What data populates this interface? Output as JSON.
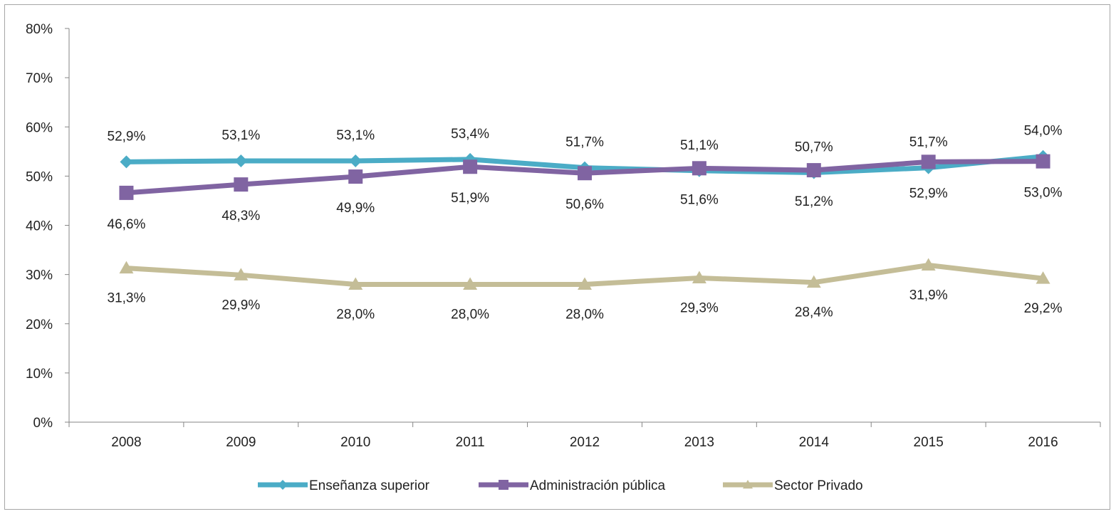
{
  "chart_data": {
    "type": "line",
    "categories": [
      "2008",
      "2009",
      "2010",
      "2011",
      "2012",
      "2013",
      "2014",
      "2015",
      "2016"
    ],
    "ylim": [
      0,
      80
    ],
    "yticks": [
      0,
      10,
      20,
      30,
      40,
      50,
      60,
      70,
      80
    ],
    "ytick_labels": [
      "0%",
      "10%",
      "20%",
      "30%",
      "40%",
      "50%",
      "60%",
      "70%",
      "80%"
    ],
    "grid": false,
    "legend_position": "bottom",
    "series": [
      {
        "name": "Enseñanza superior",
        "color": "#4bacc6",
        "marker": "diamond",
        "values": [
          52.9,
          53.1,
          53.1,
          53.4,
          51.7,
          51.1,
          50.7,
          51.7,
          54.0
        ],
        "labels": [
          "52,9%",
          "53,1%",
          "53,1%",
          "53,4%",
          "51,7%",
          "51,1%",
          "50,7%",
          "51,7%",
          "54,0%"
        ]
      },
      {
        "name": "Administración pública",
        "color": "#8064a2",
        "marker": "square",
        "values": [
          46.6,
          48.3,
          49.9,
          51.9,
          50.6,
          51.6,
          51.2,
          52.9,
          53.0
        ],
        "labels": [
          "46,6%",
          "48,3%",
          "49,9%",
          "51,9%",
          "50,6%",
          "51,6%",
          "51,2%",
          "52,9%",
          "53,0%"
        ]
      },
      {
        "name": "Sector Privado",
        "color": "#c4bd97",
        "marker": "triangle",
        "values": [
          31.3,
          29.9,
          28.0,
          28.0,
          28.0,
          29.3,
          28.4,
          31.9,
          29.2
        ],
        "labels": [
          "31,3%",
          "29,9%",
          "28,0%",
          "28,0%",
          "28,0%",
          "29,3%",
          "28,4%",
          "31,9%",
          "29,2%"
        ]
      }
    ]
  }
}
